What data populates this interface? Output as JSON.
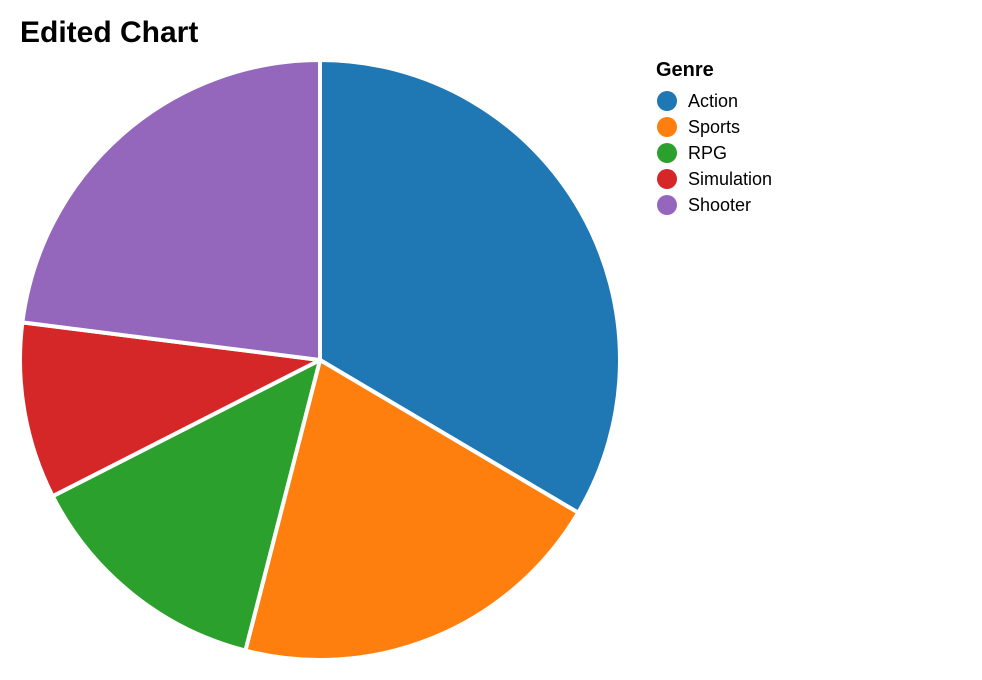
{
  "chart_data": {
    "type": "pie",
    "title": "Edited Chart",
    "legend_title": "Genre",
    "legend_position": "right",
    "categories": [
      "Action",
      "Sports",
      "RPG",
      "Simulation",
      "Shooter"
    ],
    "values": [
      33.5,
      20.5,
      13.5,
      9.5,
      23.0
    ],
    "colors": [
      "#1f77b4",
      "#ff7f0e",
      "#2ca02c",
      "#d62728",
      "#9467bd"
    ]
  }
}
